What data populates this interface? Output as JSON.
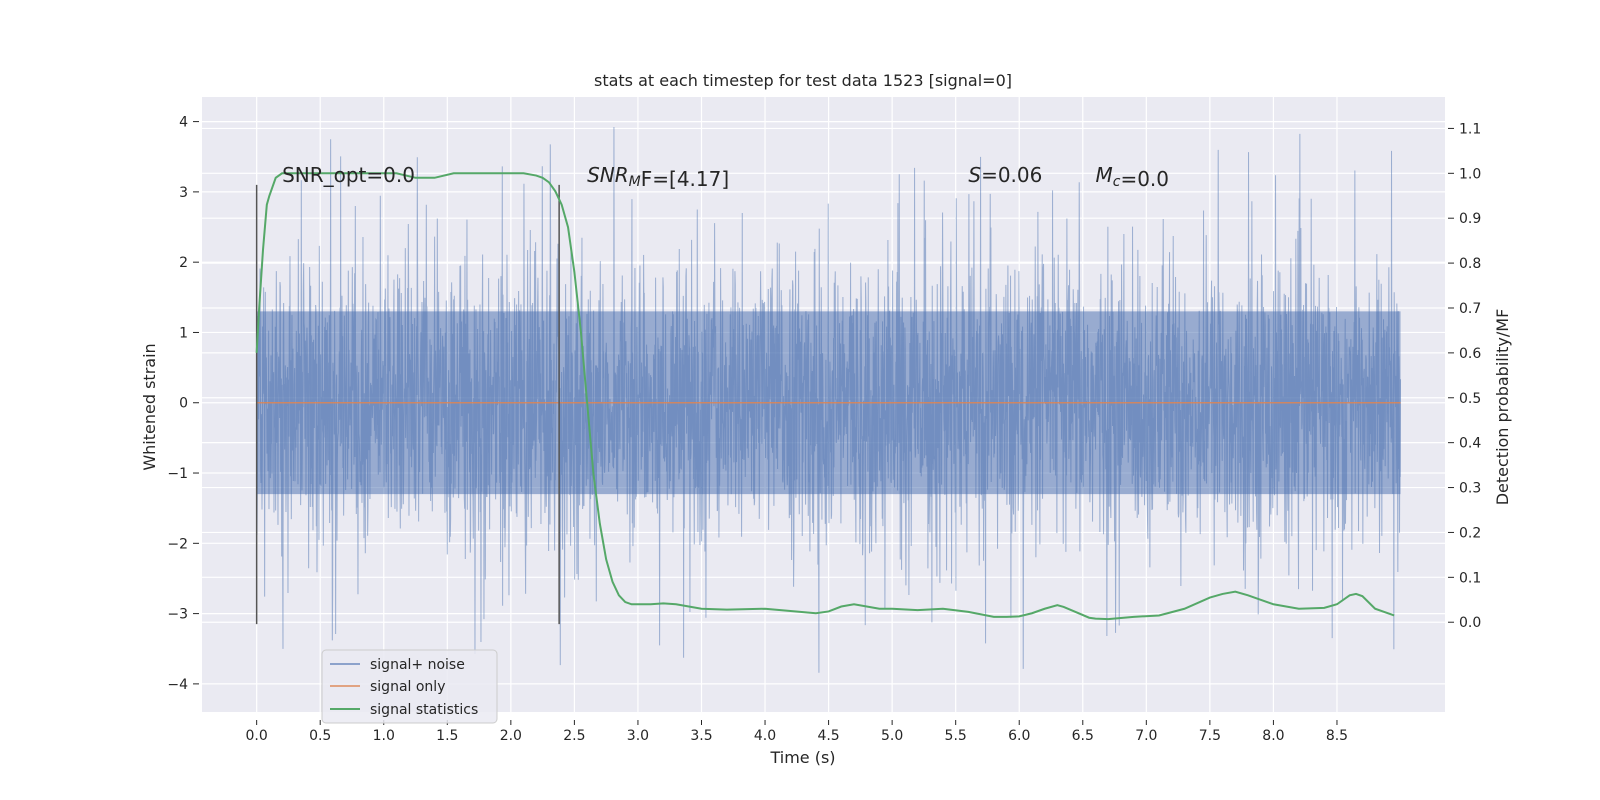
{
  "chart_data": {
    "type": "line",
    "title": "stats at each timestep for test data 1523 [signal=0]",
    "xlabel": "Time (s)",
    "ylabel": "Whitened strain",
    "y2label": "Detection probability/MF",
    "xlim": [
      -0.43,
      9.35
    ],
    "ylim": [
      -4.4,
      4.35
    ],
    "y2lim": [
      -0.2,
      1.17
    ],
    "x_ticks": [
      "0.0",
      "0.5",
      "1.0",
      "1.5",
      "2.0",
      "2.5",
      "3.0",
      "3.5",
      "4.0",
      "4.5",
      "5.0",
      "5.5",
      "6.0",
      "6.5",
      "7.0",
      "7.5",
      "8.0",
      "8.5"
    ],
    "y_ticks": [
      "−4",
      "−3",
      "−2",
      "−1",
      "0",
      "1",
      "2",
      "3",
      "4"
    ],
    "y2_ticks": [
      "0.0",
      "0.1",
      "0.2",
      "0.3",
      "0.4",
      "0.5",
      "0.6",
      "0.7",
      "0.8",
      "0.9",
      "1.0",
      "1.1"
    ],
    "grid": true,
    "colors": {
      "background": "#eaeaf2",
      "grid": "#ffffff",
      "noise": "#4c72b0",
      "signal_only": "#dd8452",
      "statistics": "#55a868",
      "vline": "#555555"
    },
    "series": [
      {
        "name": "signal+ noise",
        "kind": "noise-trace",
        "time_range": [
          0.0,
          9.0
        ],
        "core_band": [
          -1.3,
          1.3
        ],
        "typical_extreme": 2.6,
        "max_peak": 3.95,
        "min_trough": -4.0
      },
      {
        "name": "signal only",
        "x": [
          0.0,
          9.0
        ],
        "values": [
          0.0,
          0.0
        ]
      },
      {
        "name": "signal statistics",
        "axis": "right",
        "x": [
          0.0,
          0.02,
          0.05,
          0.08,
          0.1,
          0.15,
          0.2,
          0.3,
          0.5,
          0.8,
          1.1,
          1.25,
          1.4,
          1.55,
          1.7,
          1.9,
          2.1,
          2.2,
          2.25,
          2.3,
          2.35,
          2.4,
          2.45,
          2.5,
          2.55,
          2.6,
          2.65,
          2.7,
          2.75,
          2.8,
          2.85,
          2.9,
          2.95,
          3.0,
          3.1,
          3.2,
          3.3,
          3.5,
          3.7,
          4.0,
          4.2,
          4.4,
          4.5,
          4.6,
          4.7,
          4.8,
          4.9,
          5.0,
          5.2,
          5.4,
          5.6,
          5.8,
          5.9,
          6.0,
          6.1,
          6.2,
          6.3,
          6.35,
          6.45,
          6.55,
          6.6,
          6.7,
          6.9,
          7.1,
          7.3,
          7.5,
          7.6,
          7.7,
          7.8,
          7.9,
          8.0,
          8.2,
          8.4,
          8.5,
          8.6,
          8.65,
          8.7,
          8.8,
          8.9,
          8.95
        ],
        "values": [
          0.6,
          0.7,
          0.83,
          0.93,
          0.95,
          0.99,
          1.0,
          1.0,
          1.0,
          1.0,
          1.0,
          0.99,
          0.99,
          1.0,
          1.0,
          1.0,
          1.0,
          0.995,
          0.99,
          0.98,
          0.96,
          0.93,
          0.88,
          0.78,
          0.65,
          0.49,
          0.33,
          0.22,
          0.14,
          0.09,
          0.06,
          0.045,
          0.04,
          0.04,
          0.04,
          0.042,
          0.04,
          0.03,
          0.028,
          0.03,
          0.025,
          0.02,
          0.024,
          0.035,
          0.04,
          0.035,
          0.03,
          0.03,
          0.027,
          0.03,
          0.023,
          0.012,
          0.012,
          0.013,
          0.02,
          0.03,
          0.038,
          0.034,
          0.022,
          0.01,
          0.008,
          0.007,
          0.012,
          0.015,
          0.03,
          0.055,
          0.063,
          0.068,
          0.06,
          0.05,
          0.04,
          0.03,
          0.032,
          0.04,
          0.06,
          0.063,
          0.058,
          0.03,
          0.02,
          0.015
        ]
      }
    ],
    "vlines": [
      0.0,
      2.38
    ],
    "annotations": [
      {
        "parts": [
          {
            "t": "SNR_opt=0.0",
            "italic": false
          }
        ],
        "x": 0.2,
        "y": 3.14
      },
      {
        "parts": [
          {
            "t": "SNR",
            "italic": true
          },
          {
            "t": "M",
            "italic": true,
            "sub": true
          },
          {
            "t": "F=[4.17]",
            "italic": false
          }
        ],
        "x": 2.6,
        "y": 3.14
      },
      {
        "parts": [
          {
            "t": "S",
            "italic": true
          },
          {
            "t": "=0.06",
            "italic": false
          }
        ],
        "x": 5.6,
        "y": 3.14
      },
      {
        "parts": [
          {
            "t": "M",
            "italic": true
          },
          {
            "t": "c",
            "italic": true,
            "sub": true
          },
          {
            "t": "=0.0",
            "italic": false
          }
        ],
        "x": 6.6,
        "y": 3.14
      }
    ],
    "legend": {
      "placement": "lower-left",
      "entries": [
        "signal+ noise",
        "signal only",
        "signal statistics"
      ]
    }
  }
}
